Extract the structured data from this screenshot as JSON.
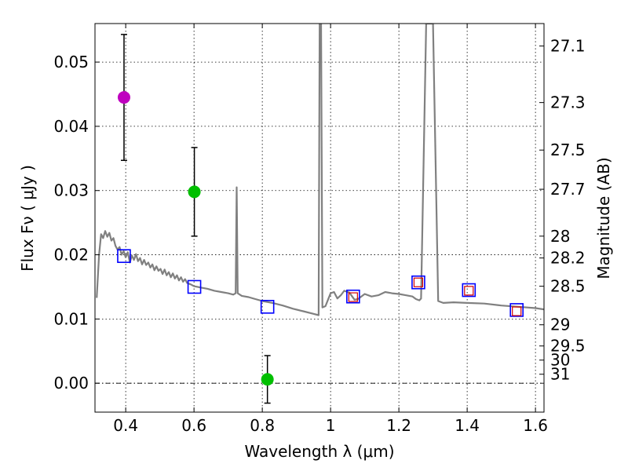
{
  "chart_data": {
    "type": "scatter",
    "title": "",
    "xlabel": "Wavelength  λ (μm)",
    "ylabel": "Flux  Fν  ( μJy )",
    "y2label": "Magnitude (AB)",
    "xlim": [
      0.31,
      1.625
    ],
    "ylim": [
      -0.0045,
      0.056
    ],
    "grid": true,
    "x_ticks": [
      {
        "value": 0.4,
        "label": "0.4"
      },
      {
        "value": 0.6,
        "label": "0.6"
      },
      {
        "value": 0.8,
        "label": "0.8"
      },
      {
        "value": 1.0,
        "label": "1"
      },
      {
        "value": 1.2,
        "label": "1.2"
      },
      {
        "value": 1.4,
        "label": "1.4"
      },
      {
        "value": 1.6,
        "label": "1.6"
      }
    ],
    "y_ticks": [
      {
        "value": 0.0,
        "label": "0.00"
      },
      {
        "value": 0.01,
        "label": "0.01"
      },
      {
        "value": 0.02,
        "label": "0.02"
      },
      {
        "value": 0.03,
        "label": "0.03"
      },
      {
        "value": 0.04,
        "label": "0.04"
      },
      {
        "value": 0.05,
        "label": "0.05"
      }
    ],
    "y2_ticks": [
      {
        "flux": 0.0525,
        "label": "27.1"
      },
      {
        "flux": 0.0437,
        "label": "27.3"
      },
      {
        "flux": 0.0363,
        "label": "27.5"
      },
      {
        "flux": 0.0302,
        "label": "27.7"
      },
      {
        "flux": 0.0229,
        "label": "28"
      },
      {
        "flux": 0.0195,
        "label": "28.2"
      },
      {
        "flux": 0.0151,
        "label": "28.5"
      },
      {
        "flux": 0.0091,
        "label": "29"
      },
      {
        "flux": 0.0058,
        "label": "29.5"
      },
      {
        "flux": 0.0036,
        "label": "30"
      },
      {
        "flux": 0.0014,
        "label": "31"
      }
    ],
    "series": [
      {
        "name": "model-spectrum",
        "kind": "line",
        "color": "#808080",
        "points": [
          [
            0.315,
            0.0133
          ],
          [
            0.322,
            0.02
          ],
          [
            0.328,
            0.0232
          ],
          [
            0.334,
            0.0226
          ],
          [
            0.34,
            0.0237
          ],
          [
            0.346,
            0.0228
          ],
          [
            0.352,
            0.0234
          ],
          [
            0.358,
            0.0222
          ],
          [
            0.364,
            0.0226
          ],
          [
            0.37,
            0.0214
          ],
          [
            0.376,
            0.0208
          ],
          [
            0.382,
            0.0212
          ],
          [
            0.388,
            0.02
          ],
          [
            0.394,
            0.0206
          ],
          [
            0.4,
            0.0196
          ],
          [
            0.406,
            0.0204
          ],
          [
            0.412,
            0.0188
          ],
          [
            0.418,
            0.0199
          ],
          [
            0.424,
            0.0192
          ],
          [
            0.43,
            0.0201
          ],
          [
            0.436,
            0.019
          ],
          [
            0.442,
            0.0195
          ],
          [
            0.448,
            0.0185
          ],
          [
            0.454,
            0.0192
          ],
          [
            0.46,
            0.0184
          ],
          [
            0.466,
            0.0188
          ],
          [
            0.472,
            0.018
          ],
          [
            0.478,
            0.0185
          ],
          [
            0.484,
            0.0176
          ],
          [
            0.49,
            0.0182
          ],
          [
            0.496,
            0.0175
          ],
          [
            0.502,
            0.0178
          ],
          [
            0.508,
            0.017
          ],
          [
            0.514,
            0.0177
          ],
          [
            0.52,
            0.0168
          ],
          [
            0.526,
            0.0173
          ],
          [
            0.532,
            0.0165
          ],
          [
            0.538,
            0.0171
          ],
          [
            0.544,
            0.0163
          ],
          [
            0.55,
            0.0168
          ],
          [
            0.556,
            0.016
          ],
          [
            0.562,
            0.0165
          ],
          [
            0.568,
            0.0158
          ],
          [
            0.574,
            0.0162
          ],
          [
            0.58,
            0.0156
          ],
          [
            0.59,
            0.0154
          ],
          [
            0.6,
            0.0151
          ],
          [
            0.62,
            0.0149
          ],
          [
            0.64,
            0.0147
          ],
          [
            0.66,
            0.0144
          ],
          [
            0.68,
            0.0142
          ],
          [
            0.7,
            0.014
          ],
          [
            0.715,
            0.0138
          ],
          [
            0.722,
            0.014
          ],
          [
            0.725,
            0.0305
          ],
          [
            0.728,
            0.014
          ],
          [
            0.74,
            0.0136
          ],
          [
            0.76,
            0.0134
          ],
          [
            0.78,
            0.0131
          ],
          [
            0.8,
            0.0128
          ],
          [
            0.83,
            0.0125
          ],
          [
            0.86,
            0.0121
          ],
          [
            0.89,
            0.0116
          ],
          [
            0.92,
            0.0112
          ],
          [
            0.95,
            0.0108
          ],
          [
            0.965,
            0.0106
          ],
          [
            0.968,
            0.056
          ],
          [
            0.972,
            0.056
          ],
          [
            0.976,
            0.0118
          ],
          [
            0.985,
            0.012
          ],
          [
            1.0,
            0.014
          ],
          [
            1.01,
            0.0142
          ],
          [
            1.02,
            0.0132
          ],
          [
            1.03,
            0.0137
          ],
          [
            1.04,
            0.0144
          ],
          [
            1.055,
            0.0141
          ],
          [
            1.07,
            0.013
          ],
          [
            1.08,
            0.0131
          ],
          [
            1.1,
            0.0139
          ],
          [
            1.12,
            0.0135
          ],
          [
            1.14,
            0.0137
          ],
          [
            1.16,
            0.0142
          ],
          [
            1.18,
            0.014
          ],
          [
            1.2,
            0.0139
          ],
          [
            1.22,
            0.0137
          ],
          [
            1.24,
            0.0135
          ],
          [
            1.25,
            0.0131
          ],
          [
            1.26,
            0.0129
          ],
          [
            1.265,
            0.0132
          ],
          [
            1.28,
            0.056
          ],
          [
            1.3,
            0.056
          ],
          [
            1.315,
            0.0128
          ],
          [
            1.33,
            0.0125
          ],
          [
            1.36,
            0.0126
          ],
          [
            1.4,
            0.0125
          ],
          [
            1.45,
            0.0124
          ],
          [
            1.5,
            0.0121
          ],
          [
            1.55,
            0.0119
          ],
          [
            1.6,
            0.0117
          ],
          [
            1.625,
            0.0115
          ]
        ]
      },
      {
        "name": "photometry-detections",
        "kind": "errorbar",
        "points": [
          {
            "x": 0.395,
            "y": 0.0445,
            "err": 0.0098,
            "color": "#bf00bf"
          },
          {
            "x": 0.601,
            "y": 0.0298,
            "err": 0.0069,
            "color": "#00bf00"
          },
          {
            "x": 0.815,
            "y": 0.0006,
            "err": 0.0037,
            "color": "#00bf00"
          }
        ]
      },
      {
        "name": "model-synthetic-fluxes",
        "kind": "scatter",
        "marker": "square-open",
        "color": "#0000ff",
        "points": [
          [
            0.395,
            0.0198
          ],
          [
            0.601,
            0.015
          ],
          [
            0.815,
            0.0119
          ],
          [
            1.066,
            0.0135
          ],
          [
            1.257,
            0.0157
          ],
          [
            1.405,
            0.0145
          ],
          [
            1.545,
            0.0114
          ]
        ]
      },
      {
        "name": "observed-upper-fluxes",
        "kind": "scatter",
        "marker": "square-open",
        "color": "#d40000",
        "points": [
          [
            1.066,
            0.0134
          ],
          [
            1.257,
            0.0157
          ],
          [
            1.405,
            0.0144
          ],
          [
            1.545,
            0.0112
          ]
        ]
      }
    ]
  }
}
